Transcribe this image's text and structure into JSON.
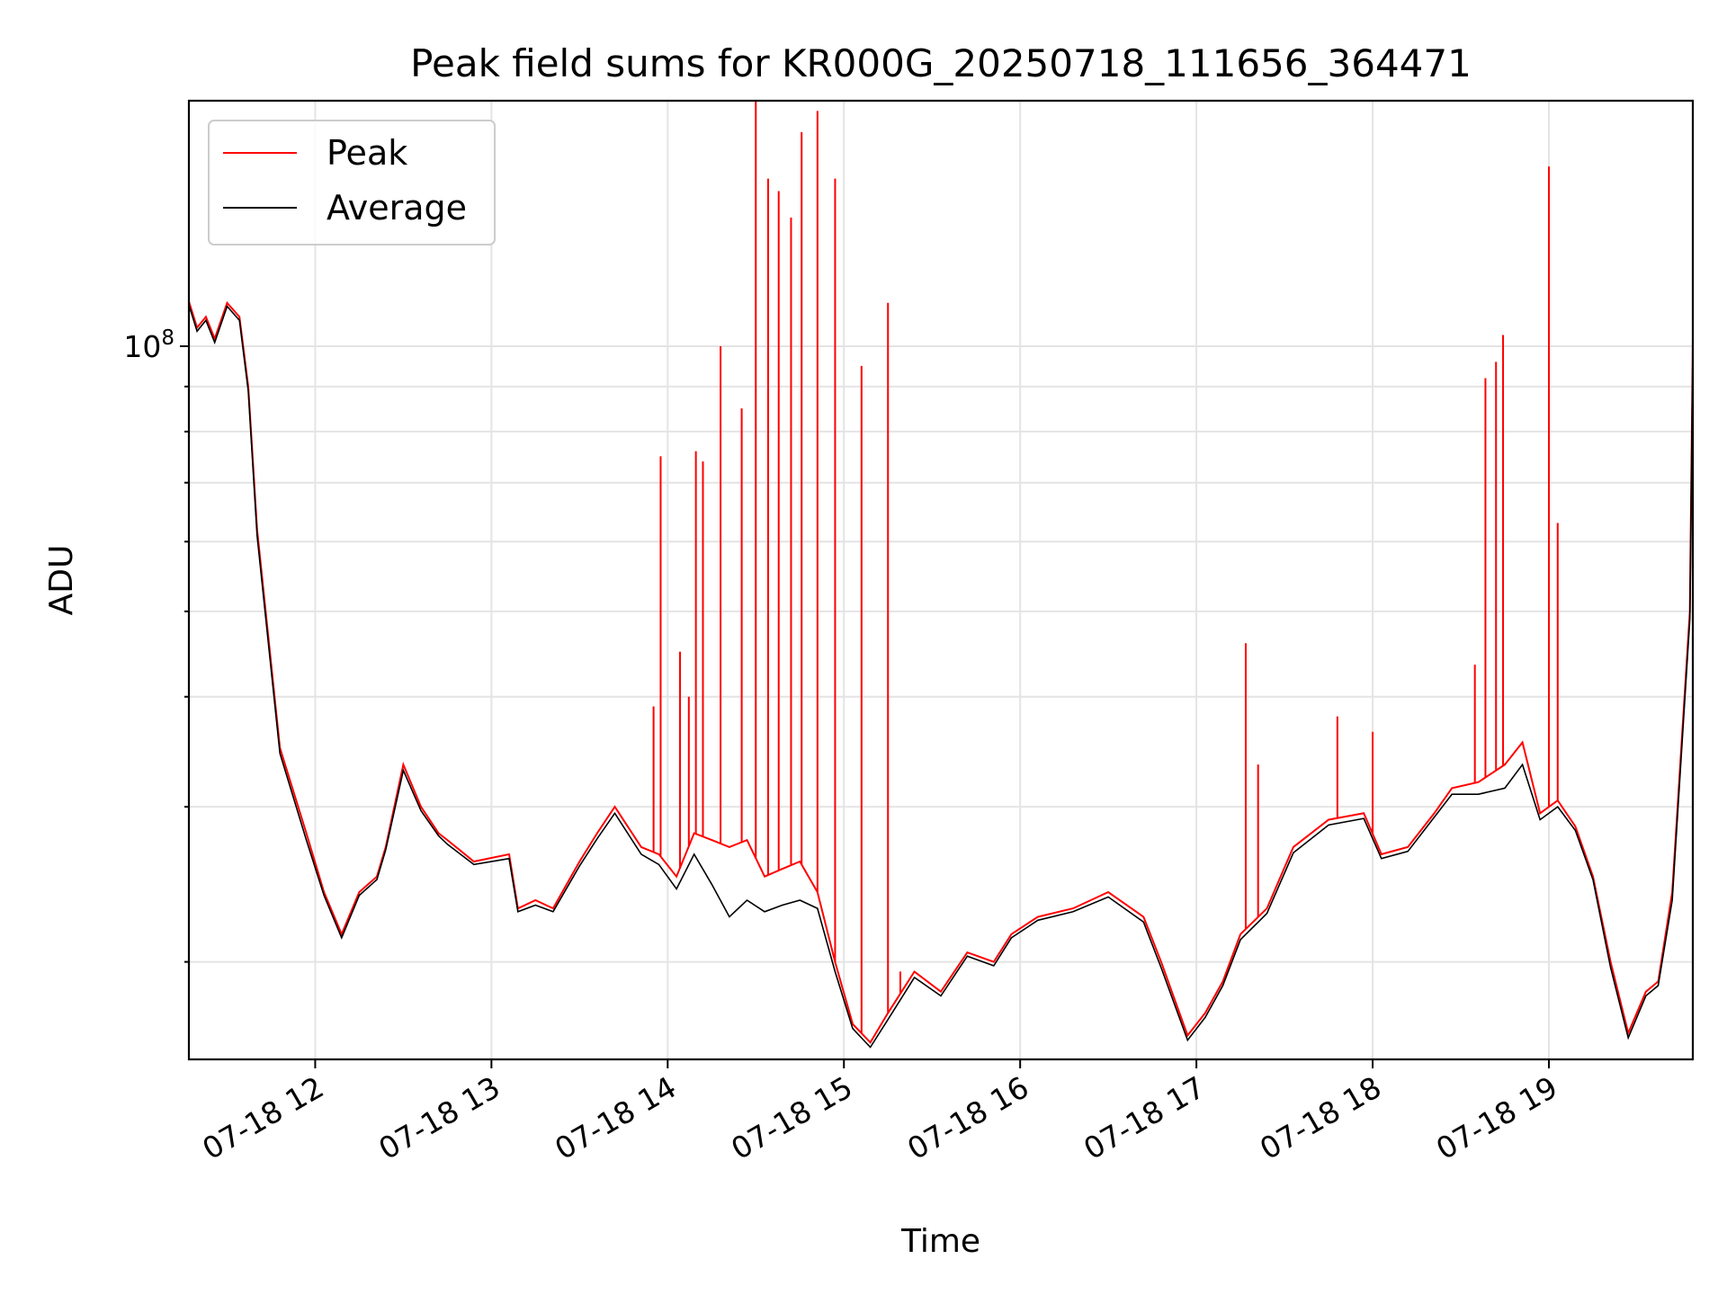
{
  "chart_data": {
    "type": "line",
    "title": "Peak field sums for KR000G_20250718_111656_364471",
    "xlabel": "Time",
    "ylabel": "ADU",
    "y_scale": "log",
    "ylim": [
      15500000,
      190000000
    ],
    "xlim": [
      "07-18 11:17",
      "07-18 19:49"
    ],
    "x_ticks": [
      "07-18 12",
      "07-18 13",
      "07-18 14",
      "07-18 15",
      "07-18 16",
      "07-18 17",
      "07-18 18",
      "07-18 19"
    ],
    "x_tick_hours": [
      12,
      13,
      14,
      15,
      16,
      17,
      18,
      19
    ],
    "y_major_tick": {
      "label_base": "10",
      "label_exponent": "8",
      "value": 100000000
    },
    "y_minor_ticks": [
      20000000,
      30000000,
      40000000,
      50000000,
      60000000,
      70000000,
      80000000,
      90000000
    ],
    "grid": true,
    "legend_position": "upper-left",
    "series": [
      {
        "name": "Peak",
        "color": "#ff0000",
        "x_hours": [
          11.28,
          11.33,
          11.38,
          11.43,
          11.5,
          11.57,
          11.62,
          11.67,
          11.8,
          11.95,
          12.05,
          12.15,
          12.25,
          12.35,
          12.4,
          12.5,
          12.6,
          12.7,
          12.75,
          12.9,
          13.1,
          13.15,
          13.25,
          13.35,
          13.5,
          13.6,
          13.7,
          13.85,
          13.95,
          14.05,
          14.15,
          14.25,
          14.35,
          14.45,
          14.55,
          14.65,
          14.75,
          14.85,
          14.95,
          15.05,
          15.15,
          15.25,
          15.4,
          15.55,
          15.7,
          15.85,
          15.95,
          16.1,
          16.3,
          16.5,
          16.7,
          16.8,
          16.95,
          17.05,
          17.15,
          17.25,
          17.4,
          17.55,
          17.75,
          17.95,
          18.05,
          18.2,
          18.35,
          18.45,
          18.6,
          18.75,
          18.85,
          18.95,
          19.05,
          19.15,
          19.25,
          19.35,
          19.45,
          19.55,
          19.62,
          19.7,
          19.8,
          19.82
        ],
        "values": [
          113000000,
          105000000,
          108000000,
          102000000,
          112000000,
          108000000,
          90000000,
          62000000,
          35000000,
          28000000,
          24000000,
          21500000,
          24000000,
          25000000,
          27000000,
          33500000,
          30000000,
          28000000,
          27500000,
          26000000,
          26500000,
          23000000,
          23500000,
          23000000,
          26000000,
          28000000,
          30000000,
          27000000,
          26500000,
          25000000,
          28000000,
          27500000,
          27000000,
          27500000,
          25000000,
          25500000,
          26000000,
          24000000,
          20000000,
          17000000,
          16200000,
          17500000,
          19500000,
          18500000,
          20500000,
          20000000,
          21500000,
          22500000,
          23000000,
          24000000,
          22500000,
          20000000,
          16500000,
          17500000,
          19000000,
          21500000,
          23000000,
          27000000,
          29000000,
          29500000,
          26500000,
          27000000,
          29500000,
          31500000,
          32000000,
          33500000,
          35500000,
          29500000,
          30500000,
          28500000,
          25000000,
          20000000,
          16600000,
          18500000,
          19000000,
          24000000,
          50000000,
          118000000
        ],
        "spikes": [
          {
            "x_hour": 13.92,
            "value": 39000000
          },
          {
            "x_hour": 13.96,
            "value": 75000000
          },
          {
            "x_hour": 14.07,
            "value": 45000000
          },
          {
            "x_hour": 14.12,
            "value": 40000000
          },
          {
            "x_hour": 14.16,
            "value": 76000000
          },
          {
            "x_hour": 14.2,
            "value": 74000000
          },
          {
            "x_hour": 14.3,
            "value": 100000000
          },
          {
            "x_hour": 14.42,
            "value": 85000000
          },
          {
            "x_hour": 14.5,
            "value": 190000000
          },
          {
            "x_hour": 14.57,
            "value": 155000000
          },
          {
            "x_hour": 14.63,
            "value": 150000000
          },
          {
            "x_hour": 14.7,
            "value": 140000000
          },
          {
            "x_hour": 14.76,
            "value": 175000000
          },
          {
            "x_hour": 14.85,
            "value": 185000000
          },
          {
            "x_hour": 14.95,
            "value": 155000000
          },
          {
            "x_hour": 15.1,
            "value": 95000000
          },
          {
            "x_hour": 15.25,
            "value": 112000000
          },
          {
            "x_hour": 15.32,
            "value": 19500000
          },
          {
            "x_hour": 17.28,
            "value": 46000000
          },
          {
            "x_hour": 17.35,
            "value": 33500000
          },
          {
            "x_hour": 17.8,
            "value": 38000000
          },
          {
            "x_hour": 18.0,
            "value": 36500000
          },
          {
            "x_hour": 18.58,
            "value": 43500000
          },
          {
            "x_hour": 18.64,
            "value": 92000000
          },
          {
            "x_hour": 18.7,
            "value": 96000000
          },
          {
            "x_hour": 18.74,
            "value": 103000000
          },
          {
            "x_hour": 19.0,
            "value": 160000000
          },
          {
            "x_hour": 19.05,
            "value": 63000000
          }
        ]
      },
      {
        "name": "Average",
        "color": "#000000",
        "x_hours": [
          11.28,
          11.33,
          11.38,
          11.43,
          11.5,
          11.57,
          11.62,
          11.67,
          11.8,
          11.95,
          12.05,
          12.15,
          12.25,
          12.35,
          12.4,
          12.5,
          12.6,
          12.7,
          12.75,
          12.9,
          13.1,
          13.15,
          13.25,
          13.35,
          13.5,
          13.6,
          13.7,
          13.85,
          13.95,
          14.05,
          14.15,
          14.25,
          14.35,
          14.45,
          14.55,
          14.65,
          14.75,
          14.85,
          14.95,
          15.05,
          15.15,
          15.25,
          15.4,
          15.55,
          15.7,
          15.85,
          15.95,
          16.1,
          16.3,
          16.5,
          16.7,
          16.8,
          16.95,
          17.05,
          17.15,
          17.25,
          17.4,
          17.55,
          17.75,
          17.95,
          18.05,
          18.2,
          18.35,
          18.45,
          18.6,
          18.75,
          18.85,
          18.95,
          19.05,
          19.15,
          19.25,
          19.35,
          19.45,
          19.55,
          19.62,
          19.7,
          19.8,
          19.82
        ],
        "values": [
          112000000,
          104000000,
          107000000,
          101000000,
          111000000,
          107000000,
          89000000,
          61000000,
          34500000,
          27500000,
          23800000,
          21300000,
          23800000,
          24800000,
          26800000,
          33000000,
          29700000,
          27800000,
          27200000,
          25800000,
          26200000,
          22800000,
          23200000,
          22800000,
          25700000,
          27600000,
          29500000,
          26500000,
          25800000,
          24200000,
          26500000,
          24500000,
          22500000,
          23500000,
          22800000,
          23200000,
          23500000,
          23000000,
          19500000,
          16800000,
          16000000,
          17200000,
          19200000,
          18300000,
          20300000,
          19800000,
          21300000,
          22300000,
          22800000,
          23700000,
          22200000,
          19700000,
          16300000,
          17300000,
          18800000,
          21200000,
          22700000,
          26600000,
          28600000,
          29100000,
          26200000,
          26700000,
          29200000,
          31000000,
          31000000,
          31500000,
          33500000,
          29000000,
          30000000,
          28200000,
          24800000,
          19700000,
          16400000,
          18300000,
          18800000,
          23500000,
          49000000,
          116000000
        ]
      }
    ]
  }
}
